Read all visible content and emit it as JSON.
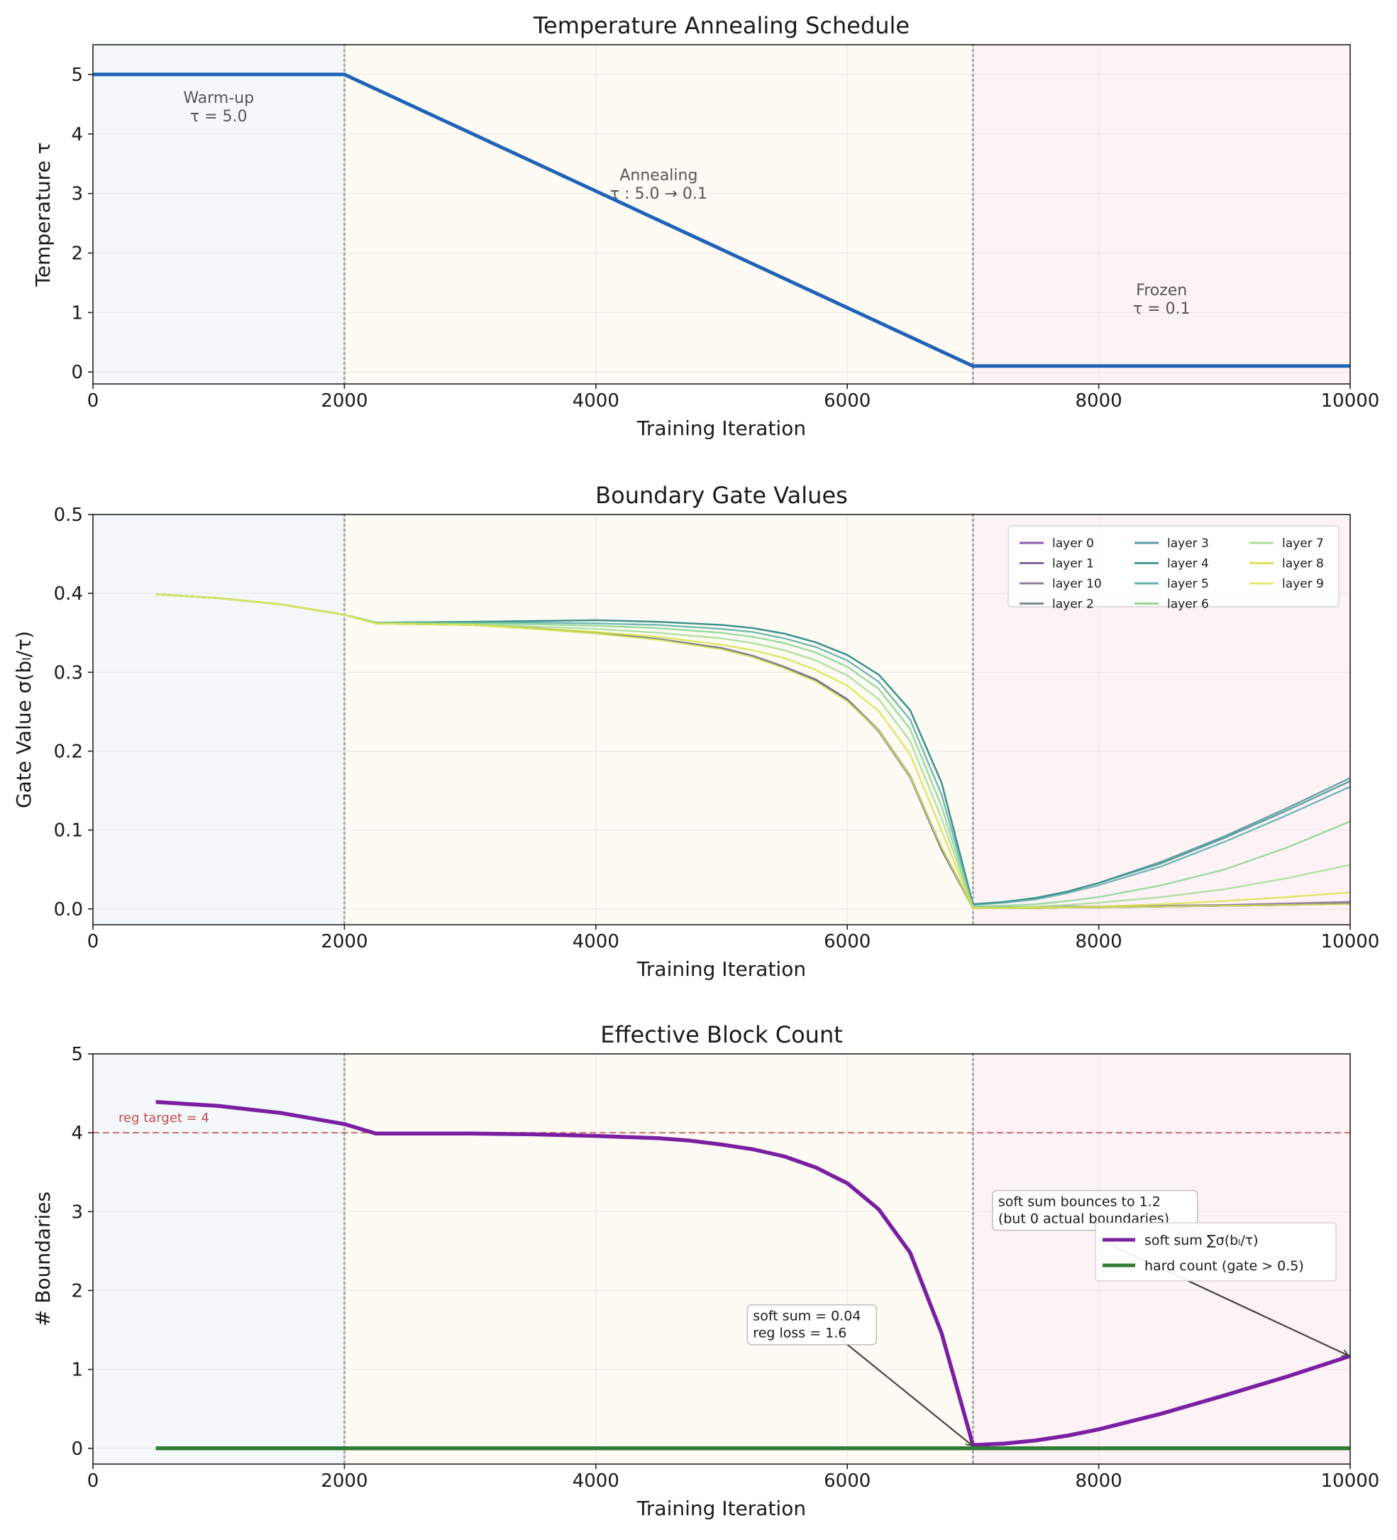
{
  "chart_data": [
    {
      "type": "line",
      "title": "Temperature Annealing Schedule",
      "xlabel": "Training Iteration",
      "ylabel": "Temperature τ",
      "xlim": [
        0,
        10000
      ],
      "ylim": [
        -0.2,
        5.5
      ],
      "xticks": [
        0,
        2000,
        4000,
        6000,
        8000,
        10000
      ],
      "yticks": [
        0,
        1,
        2,
        3,
        4,
        5
      ],
      "phase_boundaries": [
        2000,
        7000
      ],
      "phases": [
        {
          "name": "warmup",
          "from": 0,
          "to": 2000,
          "color": "#f4f8fa"
        },
        {
          "name": "annealing",
          "from": 2000,
          "to": 7000,
          "color": "#fdfbf3"
        },
        {
          "name": "frozen",
          "from": 7000,
          "to": 10000,
          "color": "#fdf3f7"
        }
      ],
      "series": [
        {
          "name": "temperature",
          "color": "#1f63b8",
          "x": [
            0,
            2000,
            7000,
            10000
          ],
          "y": [
            5.0,
            5.0,
            0.1,
            0.1
          ]
        }
      ],
      "annotations": [
        {
          "line1": "Warm-up",
          "line2": "τ = 5.0",
          "x": 1000,
          "y": 4.38
        },
        {
          "line1": "Annealing",
          "line2": "τ : 5.0 → 0.1",
          "x": 4500,
          "y": 3.08
        },
        {
          "line1": "Frozen",
          "line2": "τ = 0.1",
          "x": 8500,
          "y": 1.15
        }
      ]
    },
    {
      "type": "line",
      "title": "Boundary Gate Values",
      "xlabel": "Training Iteration",
      "ylabel": "Gate Value σ(bₗ/τ)",
      "xlim": [
        0,
        10000
      ],
      "ylim": [
        -0.02,
        0.5
      ],
      "xticks": [
        0,
        2000,
        4000,
        6000,
        8000,
        10000
      ],
      "yticks": [
        0.0,
        0.1,
        0.2,
        0.3,
        0.4,
        0.5
      ],
      "ytick_labels": [
        "0.0",
        "0.1",
        "0.2",
        "0.3",
        "0.4",
        "0.5"
      ],
      "phase_boundaries": [
        2000,
        7000
      ],
      "legend_position": "top-right",
      "x": [
        500,
        1000,
        1500,
        2000,
        2250,
        3000,
        3500,
        4000,
        4500,
        5000,
        5250,
        5500,
        5750,
        6000,
        6250,
        6500,
        6750,
        7000,
        7250,
        7500,
        7750,
        8000,
        8500,
        9000,
        9500,
        10000
      ],
      "series": [
        {
          "name": "layer 0",
          "color": "#7b3fa0",
          "values": [
            0.399,
            0.394,
            0.386,
            0.373,
            0.362,
            0.36,
            0.356,
            0.35,
            0.342,
            0.33,
            0.32,
            0.306,
            0.29,
            0.265,
            0.225,
            0.167,
            0.075,
            0.001,
            0.001,
            0.001,
            0.002,
            0.002,
            0.003,
            0.004,
            0.005,
            0.007
          ]
        },
        {
          "name": "layer 1",
          "color": "#6a4a8a",
          "values": [
            0.399,
            0.394,
            0.386,
            0.373,
            0.362,
            0.36,
            0.356,
            0.35,
            0.342,
            0.33,
            0.32,
            0.306,
            0.29,
            0.265,
            0.225,
            0.167,
            0.075,
            0.001,
            0.001,
            0.001,
            0.002,
            0.002,
            0.003,
            0.004,
            0.005,
            0.007
          ]
        },
        {
          "name": "layer 10",
          "color": "#7a6688",
          "values": [
            0.399,
            0.394,
            0.386,
            0.373,
            0.362,
            0.36,
            0.356,
            0.35,
            0.342,
            0.331,
            0.321,
            0.307,
            0.291,
            0.266,
            0.227,
            0.169,
            0.078,
            0.002,
            0.002,
            0.002,
            0.003,
            0.003,
            0.004,
            0.005,
            0.007,
            0.009
          ]
        },
        {
          "name": "layer 2",
          "color": "#6d7886",
          "values": [
            0.399,
            0.394,
            0.386,
            0.373,
            0.362,
            0.36,
            0.356,
            0.35,
            0.342,
            0.33,
            0.32,
            0.306,
            0.29,
            0.265,
            0.225,
            0.167,
            0.075,
            0.001,
            0.001,
            0.001,
            0.002,
            0.002,
            0.003,
            0.004,
            0.005,
            0.007
          ]
        },
        {
          "name": "layer 3",
          "color": "#3e8a90",
          "values": [
            0.399,
            0.394,
            0.386,
            0.373,
            0.363,
            0.364,
            0.365,
            0.366,
            0.364,
            0.36,
            0.356,
            0.349,
            0.338,
            0.322,
            0.297,
            0.252,
            0.16,
            0.006,
            0.009,
            0.014,
            0.022,
            0.033,
            0.06,
            0.092,
            0.128,
            0.166
          ]
        },
        {
          "name": "layer 4",
          "color": "#2f8a85",
          "values": [
            0.399,
            0.394,
            0.386,
            0.373,
            0.363,
            0.364,
            0.365,
            0.366,
            0.364,
            0.36,
            0.356,
            0.349,
            0.338,
            0.322,
            0.297,
            0.252,
            0.16,
            0.006,
            0.009,
            0.014,
            0.022,
            0.033,
            0.058,
            0.09,
            0.125,
            0.162
          ]
        },
        {
          "name": "layer 5",
          "color": "#4aa6a2",
          "values": [
            0.399,
            0.394,
            0.386,
            0.373,
            0.363,
            0.363,
            0.363,
            0.362,
            0.36,
            0.355,
            0.351,
            0.343,
            0.332,
            0.315,
            0.288,
            0.24,
            0.145,
            0.005,
            0.008,
            0.012,
            0.02,
            0.03,
            0.054,
            0.085,
            0.119,
            0.155
          ]
        },
        {
          "name": "layer 6",
          "color": "#7fcf86",
          "values": [
            0.399,
            0.394,
            0.386,
            0.373,
            0.363,
            0.362,
            0.361,
            0.359,
            0.356,
            0.35,
            0.345,
            0.337,
            0.325,
            0.307,
            0.279,
            0.228,
            0.13,
            0.003,
            0.004,
            0.006,
            0.01,
            0.015,
            0.03,
            0.05,
            0.078,
            0.111
          ]
        },
        {
          "name": "layer 7",
          "color": "#9bd88a",
          "values": [
            0.399,
            0.394,
            0.386,
            0.373,
            0.362,
            0.361,
            0.358,
            0.355,
            0.35,
            0.343,
            0.337,
            0.328,
            0.315,
            0.296,
            0.266,
            0.213,
            0.115,
            0.002,
            0.002,
            0.003,
            0.005,
            0.008,
            0.015,
            0.025,
            0.039,
            0.056
          ]
        },
        {
          "name": "layer 8",
          "color": "#d6df3c",
          "values": [
            0.399,
            0.394,
            0.386,
            0.373,
            0.362,
            0.36,
            0.356,
            0.351,
            0.345,
            0.335,
            0.328,
            0.318,
            0.303,
            0.283,
            0.251,
            0.196,
            0.099,
            0.001,
            0.001,
            0.002,
            0.002,
            0.003,
            0.006,
            0.01,
            0.015,
            0.021
          ]
        },
        {
          "name": "layer 9",
          "color": "#dde85a",
          "values": [
            0.399,
            0.394,
            0.386,
            0.373,
            0.362,
            0.36,
            0.355,
            0.349,
            0.341,
            0.329,
            0.319,
            0.305,
            0.288,
            0.263,
            0.226,
            0.168,
            0.078,
            0.001,
            0.001,
            0.001,
            0.002,
            0.002,
            0.003,
            0.004,
            0.005,
            0.006
          ]
        }
      ]
    },
    {
      "type": "line",
      "title": "Effective Block Count",
      "xlabel": "Training Iteration",
      "ylabel": "# Boundaries",
      "xlim": [
        0,
        10000
      ],
      "ylim": [
        -0.2,
        5.0
      ],
      "xticks": [
        0,
        2000,
        4000,
        6000,
        8000,
        10000
      ],
      "yticks": [
        0,
        1,
        2,
        3,
        4,
        5
      ],
      "phase_boundaries": [
        2000,
        7000
      ],
      "reference_line": {
        "y": 4,
        "label": "reg target = 4",
        "color": "#c44e52"
      },
      "legend_position": "right",
      "series": [
        {
          "name": "soft sum",
          "legend_label": "soft sum ∑σ(bₗ/τ)",
          "color": "#7b1fa2",
          "x": [
            500,
            1000,
            1500,
            2000,
            2250,
            3000,
            3500,
            4000,
            4500,
            4750,
            5000,
            5250,
            5500,
            5750,
            6000,
            6250,
            6500,
            6750,
            7000,
            7250,
            7500,
            7750,
            8000,
            8500,
            9000,
            9500,
            10000
          ],
          "y": [
            4.39,
            4.34,
            4.25,
            4.11,
            3.99,
            3.99,
            3.98,
            3.96,
            3.93,
            3.9,
            3.85,
            3.79,
            3.7,
            3.56,
            3.36,
            3.03,
            2.48,
            1.46,
            0.04,
            0.06,
            0.1,
            0.16,
            0.24,
            0.44,
            0.67,
            0.91,
            1.17
          ]
        },
        {
          "name": "hard count",
          "legend_label": "hard count (gate > 0.5)",
          "color": "#2e7d32",
          "x": [
            500,
            10000
          ],
          "y": [
            0,
            0
          ]
        }
      ],
      "annotations": [
        {
          "line1": "soft sum = 0.04",
          "line2": "reg loss = 1.6",
          "text_x": 5250,
          "text_y": 1.62,
          "arrow_from_x": 5950,
          "arrow_from_y": 1.38,
          "arrow_to_x": 6990,
          "arrow_to_y": 0.04
        },
        {
          "line1": "soft sum bounces to 1.2",
          "line2": "(but 0 actual boundaries)",
          "text_x": 7200,
          "text_y": 3.07,
          "arrow_from_x": 8000,
          "arrow_from_y": 2.65,
          "arrow_to_x": 9980,
          "arrow_to_y": 1.18
        }
      ]
    }
  ]
}
